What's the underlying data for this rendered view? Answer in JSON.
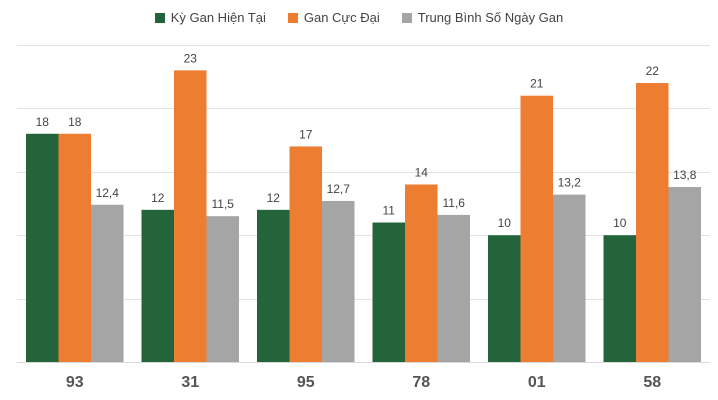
{
  "chart_data": {
    "type": "bar",
    "title": "",
    "xlabel": "",
    "ylabel": "",
    "ylim": [
      0,
      25
    ],
    "grid": true,
    "legend_position": "top-center",
    "categories": [
      "93",
      "31",
      "95",
      "78",
      "01",
      "58"
    ],
    "series": [
      {
        "name": "Kỳ Gan Hiện Tại",
        "color": "#23643a",
        "values": [
          18,
          12,
          12,
          11,
          10,
          10
        ],
        "labels": [
          "18",
          "12",
          "12",
          "11",
          "10",
          "10"
        ]
      },
      {
        "name": "Gan Cực Đại",
        "color": "#ed7d31",
        "values": [
          18,
          23,
          17,
          14,
          21,
          22
        ],
        "labels": [
          "18",
          "23",
          "17",
          "14",
          "21",
          "22"
        ]
      },
      {
        "name": "Trung Bình Số Ngày Gan",
        "color": "#a5a5a5",
        "values": [
          12.4,
          11.5,
          12.7,
          11.6,
          13.2,
          13.8
        ],
        "labels": [
          "12,4",
          "11,5",
          "12,7",
          "11,6",
          "13,2",
          "13,8"
        ]
      }
    ]
  }
}
